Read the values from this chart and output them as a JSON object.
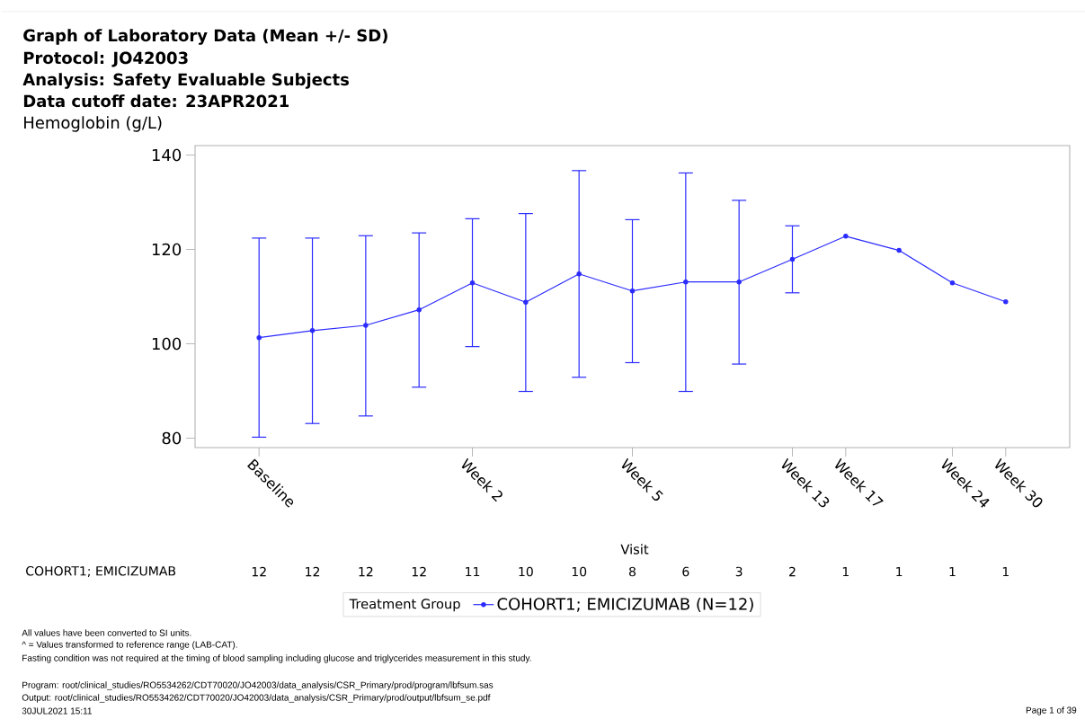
{
  "chart_data": {
    "type": "line",
    "title": "Graph of Laboratory Data (Mean +/- SD)",
    "ylabel": "Hemoglobin (g/L)",
    "xlabel": "Visit",
    "legend_title": "Treatment Group",
    "categories": [
      "Baseline",
      null,
      null,
      null,
      "Week 2",
      null,
      null,
      "Week 5",
      null,
      null,
      "Week 13",
      "Week 17",
      null,
      "Week 24",
      "Week 30"
    ],
    "series": [
      {
        "name": "COHORT1; EMICIZUMAB (N=12)",
        "color": "#2b2bff",
        "values": [
          101.3,
          102.8,
          103.9,
          107.2,
          112.9,
          108.8,
          114.8,
          111.2,
          113.1,
          113.1,
          117.9,
          122.8,
          119.8,
          112.9,
          108.9
        ],
        "errors": [
          [
            80.2,
            122.4
          ],
          [
            83.1,
            122.4
          ],
          [
            84.7,
            122.9
          ],
          [
            90.8,
            123.5
          ],
          [
            99.4,
            126.5
          ],
          [
            89.9,
            127.6
          ],
          [
            92.9,
            136.7
          ],
          [
            96.0,
            126.3
          ],
          [
            89.9,
            136.2
          ],
          [
            95.7,
            130.4
          ],
          [
            110.8,
            125.0
          ],
          null,
          null,
          null,
          null
        ]
      }
    ],
    "ylim": [
      78,
      142
    ],
    "yticks": [
      80,
      100,
      120,
      140
    ],
    "grid": false,
    "legend": "bottom",
    "marker": "circle",
    "line_style": "solid",
    "annotations": [
      "Protocol: JO42003",
      "Analysis: Safety Evaluable Subjects",
      "Data cutoff date: 23APR2021",
      "COHORT1; EMICIZUMAB",
      "All values have been converted to SI units.",
      "^ = Values transformed to reference range (LAB-CAT).",
      "Fasting condition was not required at the timing of blood sampling including glucose and triglycerides measurement in this study.",
      "Program: root/clinical_studies/RO5534262/CDT70020/JO42003/data_analysis/CSR_Primary/prod/program/lbfsum.sas",
      "Output: root/clinical_studies/RO5534262/CDT70020/JO42003/data_analysis/CSR_Primary/prod/output/lbfsum_se.pdf",
      "30JUL2021 15:11",
      "Page 1 of 39",
      "12",
      "12",
      "12",
      "12",
      "11",
      "10",
      "10",
      "8",
      "6",
      "3",
      "2",
      "1",
      "1",
      "1",
      "1"
    ]
  }
}
